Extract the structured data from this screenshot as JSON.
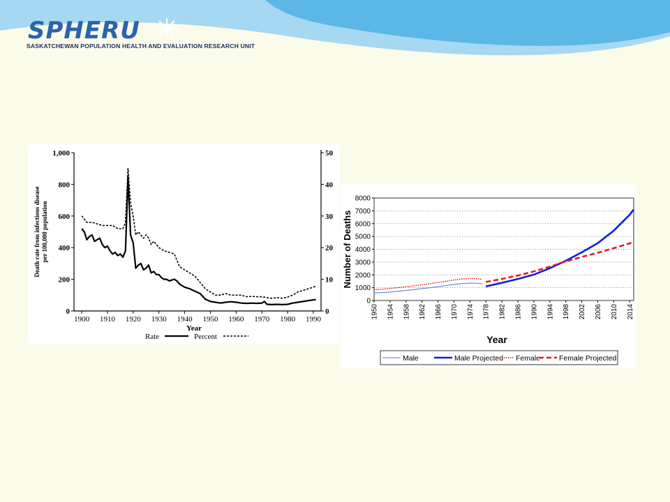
{
  "header": {
    "logo_text": "SPHERU",
    "org_name": "SASKATCHEWAN POPULATION HEALTH AND EVALUATION RESEARCH UNIT",
    "colors": {
      "wave_light": "#9fd3ef",
      "wave_mid": "#58b4e4",
      "logo": "#2a64ad"
    }
  },
  "chart_data": [
    {
      "type": "line",
      "xlabel": "Year",
      "ylabel": [
        "Death rate from infectious disease",
        "per 100,000 population"
      ],
      "xlim": [
        1897,
        1993
      ],
      "ylim": [
        0,
        1000
      ],
      "y2lim": [
        0,
        50
      ],
      "x_ticks": [
        1900,
        1910,
        1920,
        1930,
        1940,
        1950,
        1960,
        1970,
        1980,
        1990
      ],
      "y_ticks": [
        0,
        200,
        400,
        600,
        800,
        1000
      ],
      "y_tick_labels": [
        "0",
        "200",
        "400",
        "600",
        "800",
        "1,000"
      ],
      "y2_ticks": [
        0,
        10,
        20,
        30,
        40,
        50
      ],
      "legend": {
        "placement": "bottom",
        "entries": [
          "Rate",
          "Percent"
        ]
      },
      "series": [
        {
          "name": "Rate",
          "style": "solid",
          "axis": "left",
          "points": [
            [
              1900,
              520
            ],
            [
              1901,
              500
            ],
            [
              1902,
              450
            ],
            [
              1903,
              470
            ],
            [
              1904,
              480
            ],
            [
              1905,
              440
            ],
            [
              1906,
              450
            ],
            [
              1907,
              460
            ],
            [
              1908,
              420
            ],
            [
              1909,
              400
            ],
            [
              1910,
              410
            ],
            [
              1911,
              380
            ],
            [
              1912,
              360
            ],
            [
              1913,
              370
            ],
            [
              1914,
              350
            ],
            [
              1915,
              360
            ],
            [
              1916,
              340
            ],
            [
              1917,
              380
            ],
            [
              1918,
              850
            ],
            [
              1919,
              480
            ],
            [
              1920,
              430
            ],
            [
              1921,
              270
            ],
            [
              1922,
              290
            ],
            [
              1923,
              300
            ],
            [
              1924,
              260
            ],
            [
              1925,
              270
            ],
            [
              1926,
              290
            ],
            [
              1927,
              240
            ],
            [
              1928,
              250
            ],
            [
              1929,
              230
            ],
            [
              1930,
              230
            ],
            [
              1931,
              210
            ],
            [
              1932,
              200
            ],
            [
              1933,
              200
            ],
            [
              1934,
              190
            ],
            [
              1935,
              195
            ],
            [
              1936,
              200
            ],
            [
              1937,
              190
            ],
            [
              1938,
              170
            ],
            [
              1939,
              160
            ],
            [
              1940,
              150
            ],
            [
              1942,
              140
            ],
            [
              1944,
              125
            ],
            [
              1946,
              110
            ],
            [
              1948,
              75
            ],
            [
              1950,
              60
            ],
            [
              1952,
              55
            ],
            [
              1954,
              50
            ],
            [
              1956,
              55
            ],
            [
              1958,
              58
            ],
            [
              1960,
              55
            ],
            [
              1962,
              50
            ],
            [
              1964,
              48
            ],
            [
              1966,
              50
            ],
            [
              1968,
              48
            ],
            [
              1970,
              50
            ],
            [
              1971,
              60
            ],
            [
              1972,
              42
            ],
            [
              1974,
              40
            ],
            [
              1976,
              42
            ],
            [
              1978,
              40
            ],
            [
              1980,
              42
            ],
            [
              1982,
              50
            ],
            [
              1984,
              55
            ],
            [
              1986,
              60
            ],
            [
              1988,
              65
            ],
            [
              1990,
              70
            ],
            [
              1991,
              72
            ]
          ]
        },
        {
          "name": "Percent",
          "style": "dashed",
          "axis": "right",
          "points": [
            [
              1900,
              30
            ],
            [
              1901,
              29
            ],
            [
              1902,
              28
            ],
            [
              1904,
              28
            ],
            [
              1906,
              27.5
            ],
            [
              1908,
              27
            ],
            [
              1910,
              27
            ],
            [
              1912,
              27
            ],
            [
              1914,
              26
            ],
            [
              1916,
              26
            ],
            [
              1917,
              28
            ],
            [
              1918,
              45
            ],
            [
              1919,
              34
            ],
            [
              1920,
              30
            ],
            [
              1921,
              24
            ],
            [
              1922,
              25
            ],
            [
              1923,
              24
            ],
            [
              1924,
              23
            ],
            [
              1925,
              24
            ],
            [
              1926,
              23
            ],
            [
              1927,
              21
            ],
            [
              1928,
              22
            ],
            [
              1930,
              20
            ],
            [
              1932,
              19
            ],
            [
              1934,
              18.5
            ],
            [
              1936,
              18
            ],
            [
              1938,
              14
            ],
            [
              1940,
              13
            ],
            [
              1942,
              12
            ],
            [
              1944,
              11
            ],
            [
              1946,
              9
            ],
            [
              1948,
              7
            ],
            [
              1950,
              6
            ],
            [
              1952,
              5
            ],
            [
              1954,
              5
            ],
            [
              1956,
              5.5
            ],
            [
              1958,
              5
            ],
            [
              1960,
              5
            ],
            [
              1962,
              5
            ],
            [
              1964,
              4.5
            ],
            [
              1966,
              4.6
            ],
            [
              1968,
              4.5
            ],
            [
              1970,
              4.5
            ],
            [
              1972,
              4.2
            ],
            [
              1974,
              4
            ],
            [
              1976,
              4.2
            ],
            [
              1978,
              4
            ],
            [
              1980,
              4.4
            ],
            [
              1982,
              5
            ],
            [
              1984,
              6
            ],
            [
              1986,
              6.5
            ],
            [
              1988,
              7
            ],
            [
              1990,
              7.5
            ],
            [
              1991,
              7.8
            ]
          ]
        }
      ]
    },
    {
      "type": "line",
      "xlabel": "Year",
      "ylabel": "Number of Deaths",
      "xlim": [
        1950,
        2015
      ],
      "ylim": [
        0,
        8000
      ],
      "y_ticks": [
        0,
        1000,
        2000,
        3000,
        4000,
        5000,
        6000,
        7000,
        8000
      ],
      "x_ticks": [
        1950,
        1954,
        1958,
        1962,
        1966,
        1970,
        1974,
        1978,
        1982,
        1986,
        1990,
        1994,
        1998,
        2002,
        2006,
        2010,
        2014
      ],
      "grid": "dotted horizontal",
      "legend": {
        "placement": "bottom",
        "entries": [
          "Male",
          "Male Projected",
          "Female",
          "Female Projected"
        ]
      },
      "series": [
        {
          "name": "Male",
          "style": "thin-solid",
          "color": "#4f6fe0",
          "points": [
            [
              1950,
              600
            ],
            [
              1952,
              620
            ],
            [
              1954,
              660
            ],
            [
              1956,
              720
            ],
            [
              1958,
              790
            ],
            [
              1960,
              850
            ],
            [
              1962,
              930
            ],
            [
              1964,
              1000
            ],
            [
              1966,
              1080
            ],
            [
              1968,
              1170
            ],
            [
              1970,
              1250
            ],
            [
              1972,
              1320
            ],
            [
              1974,
              1360
            ],
            [
              1976,
              1350
            ],
            [
              1977,
              1300
            ]
          ]
        },
        {
          "name": "Male Projected",
          "style": "thick-solid",
          "color": "#0a1fd8",
          "points": [
            [
              1978,
              1100
            ],
            [
              1982,
              1380
            ],
            [
              1986,
              1680
            ],
            [
              1990,
              2020
            ],
            [
              1994,
              2520
            ],
            [
              1998,
              3100
            ],
            [
              2002,
              3760
            ],
            [
              2006,
              4480
            ],
            [
              2010,
              5450
            ],
            [
              2014,
              6700
            ],
            [
              2015,
              7100
            ]
          ]
        },
        {
          "name": "Female",
          "style": "dotted",
          "color": "#e01010",
          "points": [
            [
              1950,
              850
            ],
            [
              1952,
              880
            ],
            [
              1954,
              940
            ],
            [
              1956,
              1000
            ],
            [
              1958,
              1070
            ],
            [
              1960,
              1150
            ],
            [
              1962,
              1230
            ],
            [
              1964,
              1320
            ],
            [
              1966,
              1410
            ],
            [
              1968,
              1500
            ],
            [
              1970,
              1600
            ],
            [
              1972,
              1680
            ],
            [
              1974,
              1720
            ],
            [
              1976,
              1700
            ],
            [
              1977,
              1650
            ]
          ]
        },
        {
          "name": "Female Projected",
          "style": "dashed",
          "color": "#e81818",
          "points": [
            [
              1978,
              1450
            ],
            [
              1982,
              1680
            ],
            [
              1986,
              1950
            ],
            [
              1990,
              2270
            ],
            [
              1994,
              2640
            ],
            [
              1998,
              3050
            ],
            [
              2002,
              3400
            ],
            [
              2006,
              3720
            ],
            [
              2010,
              4080
            ],
            [
              2014,
              4460
            ],
            [
              2015,
              4560
            ]
          ]
        }
      ]
    }
  ]
}
